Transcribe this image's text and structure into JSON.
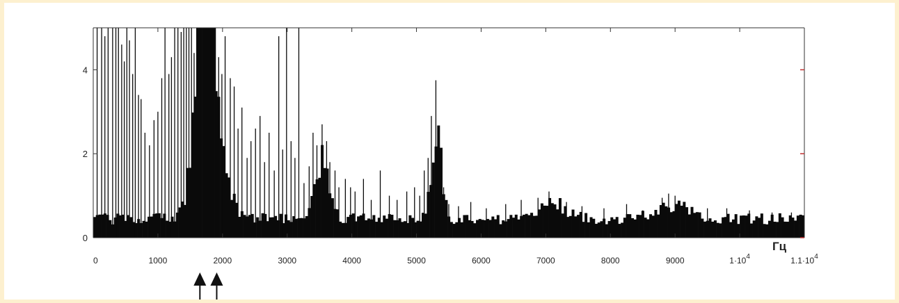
{
  "chart_data": {
    "type": "bar",
    "xlabel": "Гц",
    "xlim": [
      0,
      11000
    ],
    "ylim": [
      0,
      5
    ],
    "grid": false,
    "x_ticks": [
      {
        "value": 0,
        "label": "0"
      },
      {
        "value": 1000,
        "label": "1000"
      },
      {
        "value": 2000,
        "label": "2000"
      },
      {
        "value": 3000,
        "label": "3000"
      },
      {
        "value": 4000,
        "label": "4000"
      },
      {
        "value": 5000,
        "label": "5000"
      },
      {
        "value": 6000,
        "label": "6000"
      },
      {
        "value": 7000,
        "label": "7000"
      },
      {
        "value": 8000,
        "label": "8000"
      },
      {
        "value": 9000,
        "label": "9000"
      },
      {
        "value": 10000,
        "label": "1·10",
        "sup": "4"
      },
      {
        "value": 11000,
        "label": "1.1·10",
        "sup": "4"
      }
    ],
    "y_ticks": [
      {
        "value": 0,
        "label": "0"
      },
      {
        "value": 2,
        "label": "2"
      },
      {
        "value": 4,
        "label": "4"
      }
    ],
    "bin_width_hz": 40,
    "noise_floor": 0.45,
    "humps": [
      {
        "center": 1720,
        "width": 150,
        "height": 6.0
      },
      {
        "center": 1700,
        "width": 70,
        "height": 4.0
      },
      {
        "center": 3520,
        "width": 110,
        "height": 1.6
      },
      {
        "center": 5280,
        "width": 90,
        "height": 1.5
      },
      {
        "center": 5330,
        "width": 30,
        "height": 1.0
      },
      {
        "center": 7050,
        "width": 220,
        "height": 0.4
      },
      {
        "center": 8950,
        "width": 250,
        "height": 0.35
      },
      {
        "center": 2050,
        "width": 130,
        "height": 0.6
      }
    ],
    "spikes": [
      {
        "x": 60,
        "y": 5
      },
      {
        "x": 130,
        "y": 5
      },
      {
        "x": 180,
        "y": 4.8
      },
      {
        "x": 230,
        "y": 5
      },
      {
        "x": 300,
        "y": 5
      },
      {
        "x": 350,
        "y": 5
      },
      {
        "x": 390,
        "y": 5
      },
      {
        "x": 440,
        "y": 4.6
      },
      {
        "x": 480,
        "y": 4.2
      },
      {
        "x": 520,
        "y": 5
      },
      {
        "x": 560,
        "y": 4.7
      },
      {
        "x": 610,
        "y": 3.9
      },
      {
        "x": 650,
        "y": 5
      },
      {
        "x": 700,
        "y": 3.4
      },
      {
        "x": 740,
        "y": 3.3
      },
      {
        "x": 800,
        "y": 2.5
      },
      {
        "x": 870,
        "y": 2.2
      },
      {
        "x": 940,
        "y": 2.8
      },
      {
        "x": 1000,
        "y": 3.0
      },
      {
        "x": 1060,
        "y": 3.8
      },
      {
        "x": 1110,
        "y": 5
      },
      {
        "x": 1170,
        "y": 3.9
      },
      {
        "x": 1210,
        "y": 4.3
      },
      {
        "x": 1260,
        "y": 5
      },
      {
        "x": 1310,
        "y": 5
      },
      {
        "x": 1360,
        "y": 4.9
      },
      {
        "x": 1400,
        "y": 5
      },
      {
        "x": 1440,
        "y": 5
      },
      {
        "x": 1480,
        "y": 5
      },
      {
        "x": 1520,
        "y": 5
      },
      {
        "x": 1560,
        "y": 4.4
      },
      {
        "x": 1600,
        "y": 5
      },
      {
        "x": 1890,
        "y": 5
      },
      {
        "x": 1940,
        "y": 4.3
      },
      {
        "x": 1990,
        "y": 3.9
      },
      {
        "x": 2040,
        "y": 4.8
      },
      {
        "x": 2120,
        "y": 3.8
      },
      {
        "x": 2180,
        "y": 3.6
      },
      {
        "x": 2240,
        "y": 2.6
      },
      {
        "x": 2300,
        "y": 3.1
      },
      {
        "x": 2380,
        "y": 1.9
      },
      {
        "x": 2440,
        "y": 2.3
      },
      {
        "x": 2510,
        "y": 2.6
      },
      {
        "x": 2580,
        "y": 2.9
      },
      {
        "x": 2650,
        "y": 1.8
      },
      {
        "x": 2720,
        "y": 2.5
      },
      {
        "x": 2800,
        "y": 1.6
      },
      {
        "x": 2870,
        "y": 4.8
      },
      {
        "x": 2930,
        "y": 2.1
      },
      {
        "x": 2990,
        "y": 5
      },
      {
        "x": 3060,
        "y": 2.3
      },
      {
        "x": 3120,
        "y": 1.9
      },
      {
        "x": 3180,
        "y": 5
      },
      {
        "x": 3260,
        "y": 1.3
      },
      {
        "x": 3340,
        "y": 1.7
      },
      {
        "x": 3400,
        "y": 2.5
      },
      {
        "x": 3460,
        "y": 2.2
      },
      {
        "x": 3540,
        "y": 2.7
      },
      {
        "x": 3610,
        "y": 2.3
      },
      {
        "x": 3660,
        "y": 1.8
      },
      {
        "x": 3740,
        "y": 1.6
      },
      {
        "x": 3800,
        "y": 1.2
      },
      {
        "x": 3900,
        "y": 1.4
      },
      {
        "x": 3980,
        "y": 1.2
      },
      {
        "x": 4050,
        "y": 1.1
      },
      {
        "x": 4180,
        "y": 1.4
      },
      {
        "x": 4300,
        "y": 0.9
      },
      {
        "x": 4440,
        "y": 1.6
      },
      {
        "x": 4580,
        "y": 1.0
      },
      {
        "x": 4700,
        "y": 0.9
      },
      {
        "x": 4850,
        "y": 1.1
      },
      {
        "x": 4970,
        "y": 1.2
      },
      {
        "x": 5050,
        "y": 1.0
      },
      {
        "x": 5120,
        "y": 1.6
      },
      {
        "x": 5180,
        "y": 1.9
      },
      {
        "x": 5230,
        "y": 2.9
      },
      {
        "x": 5300,
        "y": 3.75
      },
      {
        "x": 5340,
        "y": 2.2
      },
      {
        "x": 5420,
        "y": 1.2
      },
      {
        "x": 5500,
        "y": 0.8
      },
      {
        "x": 5650,
        "y": 0.75
      },
      {
        "x": 5840,
        "y": 0.85
      },
      {
        "x": 6080,
        "y": 0.7
      },
      {
        "x": 6380,
        "y": 0.8
      },
      {
        "x": 6620,
        "y": 0.9
      },
      {
        "x": 6880,
        "y": 0.95
      },
      {
        "x": 7050,
        "y": 1.1
      },
      {
        "x": 7320,
        "y": 0.85
      },
      {
        "x": 7560,
        "y": 0.75
      },
      {
        "x": 7900,
        "y": 0.7
      },
      {
        "x": 8250,
        "y": 0.8
      },
      {
        "x": 8500,
        "y": 0.65
      },
      {
        "x": 8800,
        "y": 0.95
      },
      {
        "x": 8900,
        "y": 1.05
      },
      {
        "x": 9000,
        "y": 1.0
      },
      {
        "x": 9150,
        "y": 0.8
      },
      {
        "x": 9500,
        "y": 0.7
      },
      {
        "x": 9800,
        "y": 0.7
      },
      {
        "x": 10150,
        "y": 0.65
      },
      {
        "x": 10500,
        "y": 0.6
      },
      {
        "x": 10800,
        "y": 0.6
      }
    ],
    "markers": [
      {
        "x": 1650,
        "label": ""
      },
      {
        "x": 1910,
        "label": ""
      }
    ]
  },
  "colors": {
    "page_background": "#fdf0cf",
    "stage_background": "#ffffff",
    "bar_fill": "#0a0a0a",
    "axis_color": "#333333",
    "right_tick_color": "#c03030"
  }
}
